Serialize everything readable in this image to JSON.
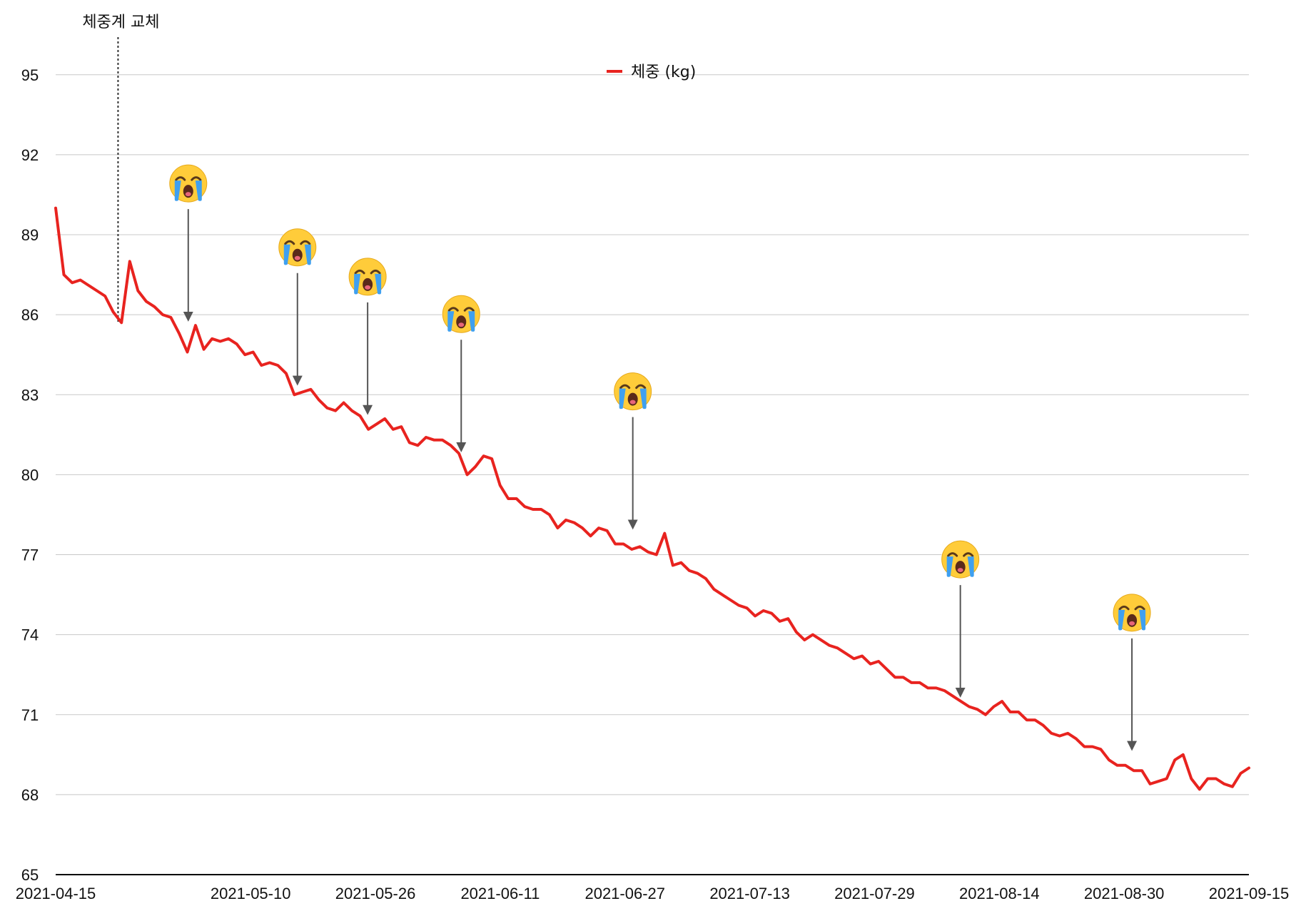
{
  "chart_data": {
    "type": "line",
    "legend": {
      "label": "체중 (kg)",
      "placement": "top-center"
    },
    "series": [
      {
        "name": "체중 (kg)",
        "color": "#e8231f",
        "start_date": "2021-04-15"
      }
    ],
    "colors": {
      "line": "#e8231f",
      "grid": "#c8c8c8",
      "annotation_arrow": "#555555",
      "axis": "#000000"
    },
    "y_ticks": [
      65,
      68,
      71,
      74,
      77,
      80,
      83,
      86,
      89,
      92,
      95
    ],
    "y_tick_labels": [
      "65",
      "68",
      "71",
      "74",
      "77",
      "80",
      "83",
      "86",
      "89",
      "92",
      "95"
    ],
    "ylim": [
      65,
      97
    ],
    "x_ticks": [
      "2021-04-15",
      "2021-05-10",
      "2021-05-26",
      "2021-06-11",
      "2021-06-27",
      "2021-07-13",
      "2021-07-29",
      "2021-08-14",
      "2021-08-30",
      "2021-09-15"
    ],
    "xlim": [
      "2021-04-15",
      "2021-09-15"
    ],
    "grid": true,
    "values": [
      90.0,
      87.5,
      87.2,
      87.3,
      87.1,
      86.9,
      86.7,
      86.1,
      85.7,
      88.0,
      86.9,
      86.5,
      86.3,
      86.0,
      85.9,
      85.3,
      84.6,
      85.6,
      84.7,
      85.1,
      85.0,
      85.1,
      84.9,
      84.5,
      84.6,
      84.1,
      84.2,
      84.1,
      83.8,
      83.0,
      83.1,
      83.2,
      82.8,
      82.5,
      82.4,
      82.7,
      82.4,
      82.2,
      81.7,
      81.9,
      82.1,
      81.7,
      81.8,
      81.2,
      81.1,
      81.4,
      81.3,
      81.3,
      81.1,
      80.8,
      80.0,
      80.3,
      80.7,
      80.6,
      79.6,
      79.1,
      79.1,
      78.8,
      78.7,
      78.7,
      78.5,
      78.0,
      78.3,
      78.2,
      78.0,
      77.7,
      78.0,
      77.9,
      77.4,
      77.4,
      77.2,
      77.3,
      77.1,
      77.0,
      77.8,
      76.6,
      76.7,
      76.4,
      76.3,
      76.1,
      75.7,
      75.5,
      75.3,
      75.1,
      75.0,
      74.7,
      74.9,
      74.8,
      74.5,
      74.6,
      74.1,
      73.8,
      74.0,
      73.8,
      73.6,
      73.5,
      73.3,
      73.1,
      73.2,
      72.9,
      73.0,
      72.7,
      72.4,
      72.4,
      72.2,
      72.2,
      72.0,
      72.0,
      71.9,
      71.7,
      71.5,
      71.3,
      71.2,
      71.0,
      71.3,
      71.5,
      71.1,
      71.1,
      70.8,
      70.8,
      70.6,
      70.3,
      70.2,
      70.3,
      70.1,
      69.8,
      69.8,
      69.7,
      69.3,
      69.1,
      69.1,
      68.9,
      68.9,
      68.4,
      68.5,
      68.6,
      69.3,
      69.5,
      68.6,
      68.2,
      68.6,
      68.6,
      68.4,
      68.3,
      68.8,
      69.0
    ],
    "emoji_markers": [
      {
        "date": "2021-05-02",
        "label": "😭",
        "value": 85.6
      },
      {
        "date": "2021-05-16",
        "label": "😭",
        "value": 83.2
      },
      {
        "date": "2021-05-25",
        "label": "😭",
        "value": 82.1
      },
      {
        "date": "2021-06-06",
        "label": "😭",
        "value": 80.7
      },
      {
        "date": "2021-06-28",
        "label": "😭",
        "value": 77.8
      },
      {
        "date": "2021-08-09",
        "label": "😭",
        "value": 71.5
      },
      {
        "date": "2021-08-31",
        "label": "😭",
        "value": 69.5
      }
    ],
    "event_annotation": {
      "date": "2021-04-23",
      "label": "체중계 교체"
    }
  }
}
